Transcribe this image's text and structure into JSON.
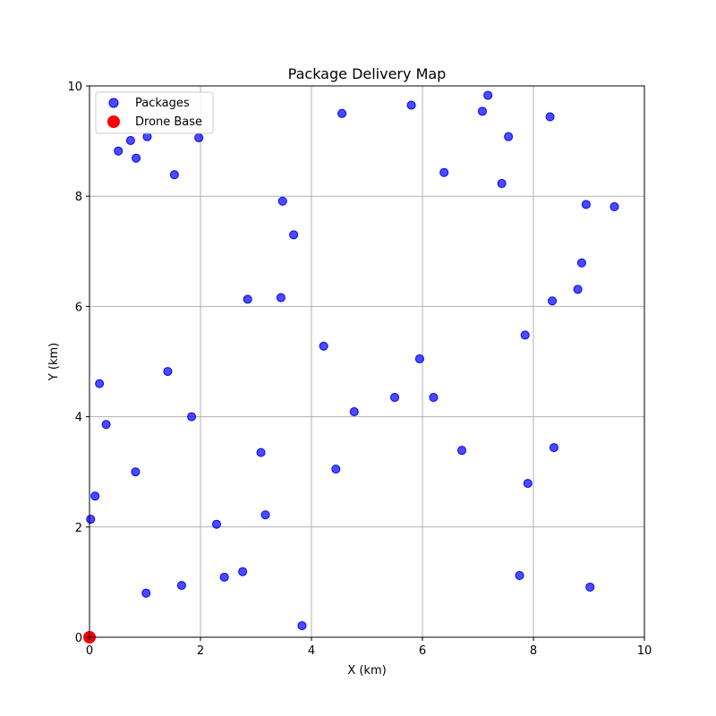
{
  "chart_data": {
    "type": "scatter",
    "title": "Package Delivery Map",
    "xlabel": "X (km)",
    "ylabel": "Y (km)",
    "xlim": [
      0,
      10
    ],
    "ylim": [
      0,
      10
    ],
    "xticks": [
      "0",
      "2",
      "4",
      "6",
      "8",
      "10"
    ],
    "yticks": [
      "0",
      "2",
      "4",
      "6",
      "8",
      "10"
    ],
    "grid": true,
    "legend_position": "top-left",
    "series": [
      {
        "name": "Packages",
        "color": "#0000ff",
        "points": [
          [
            0.52,
            8.82
          ],
          [
            0.74,
            9.01
          ],
          [
            0.84,
            8.69
          ],
          [
            1.04,
            9.08
          ],
          [
            1.53,
            8.39
          ],
          [
            1.97,
            9.06
          ],
          [
            4.55,
            9.5
          ],
          [
            5.8,
            9.65
          ],
          [
            7.08,
            9.54
          ],
          [
            7.18,
            9.83
          ],
          [
            7.55,
            9.08
          ],
          [
            8.3,
            9.44
          ],
          [
            6.39,
            8.43
          ],
          [
            7.43,
            8.23
          ],
          [
            8.95,
            7.85
          ],
          [
            9.46,
            7.81
          ],
          [
            3.48,
            7.91
          ],
          [
            3.68,
            7.3
          ],
          [
            8.87,
            6.79
          ],
          [
            8.8,
            6.31
          ],
          [
            8.34,
            6.1
          ],
          [
            2.85,
            6.13
          ],
          [
            3.45,
            6.16
          ],
          [
            7.85,
            5.48
          ],
          [
            4.22,
            5.28
          ],
          [
            5.95,
            5.05
          ],
          [
            1.41,
            4.82
          ],
          [
            0.18,
            4.6
          ],
          [
            5.5,
            4.35
          ],
          [
            6.2,
            4.35
          ],
          [
            4.77,
            4.09
          ],
          [
            1.84,
            4.0
          ],
          [
            0.3,
            3.86
          ],
          [
            6.71,
            3.39
          ],
          [
            8.37,
            3.44
          ],
          [
            3.09,
            3.35
          ],
          [
            4.44,
            3.05
          ],
          [
            0.83,
            3.0
          ],
          [
            7.9,
            2.79
          ],
          [
            0.1,
            2.56
          ],
          [
            3.17,
            2.22
          ],
          [
            0.02,
            2.14
          ],
          [
            2.29,
            2.05
          ],
          [
            2.76,
            1.19
          ],
          [
            7.75,
            1.12
          ],
          [
            2.43,
            1.09
          ],
          [
            1.66,
            0.94
          ],
          [
            9.02,
            0.91
          ],
          [
            1.02,
            0.8
          ],
          [
            3.83,
            0.21
          ]
        ]
      },
      {
        "name": "Drone Base",
        "color": "#ff0000",
        "points": [
          [
            0,
            0
          ]
        ]
      }
    ]
  }
}
